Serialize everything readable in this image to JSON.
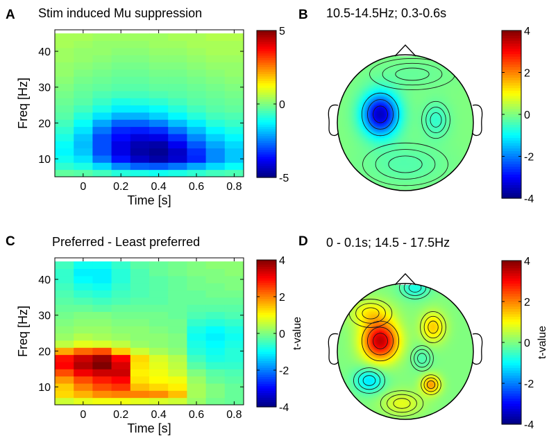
{
  "colormap": "jet",
  "panels": [
    {
      "letter": "A",
      "title": "Stim induced Mu suppression"
    },
    {
      "letter": "B",
      "title": "10.5-14.5Hz; 0.3-0.6s"
    },
    {
      "letter": "C",
      "title": "Preferred - Least preferred"
    },
    {
      "letter": "D",
      "title": "0 - 0.1s; 14.5 - 17.5Hz"
    }
  ],
  "chart_data": [
    {
      "panel": "A",
      "type": "heatmap",
      "title": "Stim induced Mu suppression",
      "xlabel": "Time [s]",
      "ylabel": "Freq [Hz]",
      "xlim": [
        -0.15,
        0.85
      ],
      "ylim": [
        5,
        46
      ],
      "xticks": [
        "0",
        "0.2",
        "0.4",
        "0.6",
        "0.8"
      ],
      "xtick_values": [
        0,
        0.2,
        0.4,
        0.6,
        0.8
      ],
      "yticks": [
        "10",
        "20",
        "30",
        "40"
      ],
      "ytick_values": [
        10,
        20,
        30,
        40
      ],
      "x": [
        -0.1,
        0.0,
        0.1,
        0.2,
        0.3,
        0.4,
        0.5,
        0.6,
        0.7,
        0.8
      ],
      "y": [
        6,
        8,
        10,
        12,
        14,
        16,
        18,
        20,
        22,
        24,
        26,
        28,
        30,
        32,
        34,
        36,
        38,
        40,
        42,
        44
      ],
      "values": [
        [
          -0.3,
          -0.4,
          -0.6,
          -0.9,
          -1.0,
          -1.1,
          -1.0,
          -0.8,
          -0.6,
          -0.5
        ],
        [
          -0.8,
          -1.0,
          -1.6,
          -2.4,
          -2.8,
          -2.9,
          -2.6,
          -2.1,
          -1.6,
          -1.2
        ],
        [
          -1.1,
          -1.5,
          -2.6,
          -3.6,
          -4.3,
          -4.6,
          -4.2,
          -3.4,
          -2.4,
          -1.8
        ],
        [
          -1.3,
          -1.8,
          -3.0,
          -4.0,
          -4.6,
          -4.8,
          -4.3,
          -3.3,
          -2.4,
          -1.8
        ],
        [
          -1.2,
          -1.9,
          -3.0,
          -4.0,
          -4.5,
          -4.6,
          -3.9,
          -2.9,
          -2.1,
          -1.6
        ],
        [
          -1.0,
          -1.8,
          -3.0,
          -3.7,
          -4.1,
          -4.0,
          -3.3,
          -2.4,
          -1.7,
          -1.3
        ],
        [
          -0.8,
          -1.5,
          -2.6,
          -3.4,
          -3.5,
          -3.3,
          -2.6,
          -1.9,
          -1.3,
          -1.0
        ],
        [
          -0.6,
          -1.2,
          -2.1,
          -2.8,
          -2.8,
          -2.5,
          -1.9,
          -1.4,
          -0.9,
          -0.7
        ],
        [
          -0.4,
          -0.9,
          -1.5,
          -2.0,
          -2.0,
          -1.7,
          -1.3,
          -0.9,
          -0.6,
          -0.5
        ],
        [
          -0.3,
          -0.6,
          -1.0,
          -1.4,
          -1.4,
          -1.2,
          -0.9,
          -0.6,
          -0.4,
          -0.3
        ],
        [
          -0.2,
          -0.4,
          -0.7,
          -1.0,
          -0.9,
          -0.8,
          -0.6,
          -0.4,
          -0.3,
          -0.2
        ],
        [
          -0.1,
          -0.3,
          -0.5,
          -0.6,
          -0.6,
          -0.5,
          -0.4,
          -0.3,
          -0.2,
          -0.1
        ],
        [
          0.0,
          -0.2,
          -0.3,
          -0.4,
          -0.4,
          -0.3,
          -0.3,
          -0.2,
          -0.1,
          0.0
        ],
        [
          0.1,
          -0.1,
          -0.2,
          -0.3,
          -0.3,
          -0.2,
          -0.2,
          -0.1,
          0.0,
          0.1
        ],
        [
          0.2,
          0.0,
          -0.1,
          -0.2,
          -0.2,
          -0.1,
          -0.1,
          0.0,
          0.1,
          0.2
        ],
        [
          0.2,
          0.1,
          0.0,
          -0.1,
          -0.1,
          0.0,
          0.0,
          0.1,
          0.2,
          0.2
        ],
        [
          0.3,
          0.2,
          0.1,
          0.0,
          0.0,
          0.1,
          0.1,
          0.2,
          0.3,
          0.3
        ],
        [
          0.3,
          0.2,
          0.2,
          0.1,
          0.1,
          0.2,
          0.2,
          0.3,
          0.4,
          0.4
        ],
        [
          0.4,
          0.3,
          0.2,
          0.2,
          0.2,
          0.3,
          0.3,
          0.4,
          0.4,
          0.4
        ],
        [
          0.4,
          0.4,
          0.3,
          0.3,
          0.3,
          0.3,
          0.4,
          0.4,
          0.5,
          0.5
        ]
      ],
      "colorbar": {
        "min": -5,
        "max": 5,
        "ticks": [
          "5",
          "0",
          "-5"
        ],
        "tick_values": [
          5,
          0,
          -5
        ],
        "label": ""
      }
    },
    {
      "panel": "B",
      "type": "heatmap",
      "subtype": "topographic scalp map",
      "title": "10.5-14.5Hz; 0.3-0.6s",
      "extrema": [
        {
          "location": "left-central",
          "value": -3.5
        },
        {
          "location": "right-temporal",
          "value": -0.6
        }
      ],
      "colorbar": {
        "min": -4,
        "max": 4,
        "ticks": [
          "4",
          "2",
          "0",
          "-2",
          "-4"
        ],
        "tick_values": [
          4,
          2,
          0,
          -2,
          -4
        ],
        "label": ""
      }
    },
    {
      "panel": "C",
      "type": "heatmap",
      "title": "Preferred - Least preferred",
      "xlabel": "Time [s]",
      "ylabel": "Freq [Hz]",
      "xlim": [
        -0.15,
        0.85
      ],
      "ylim": [
        5,
        46
      ],
      "xticks": [
        "0",
        "0.2",
        "0.4",
        "0.6",
        "0.8"
      ],
      "xtick_values": [
        0,
        0.2,
        0.4,
        0.6,
        0.8
      ],
      "yticks": [
        "10",
        "20",
        "30",
        "40"
      ],
      "ytick_values": [
        10,
        20,
        30,
        40
      ],
      "x": [
        -0.1,
        0.0,
        0.1,
        0.2,
        0.3,
        0.4,
        0.5,
        0.6,
        0.7,
        0.8
      ],
      "y": [
        6,
        8,
        10,
        12,
        14,
        16,
        18,
        20,
        22,
        24,
        26,
        28,
        30,
        32,
        34,
        36,
        38,
        40,
        42,
        44
      ],
      "values": [
        [
          0.6,
          0.8,
          0.9,
          0.9,
          0.8,
          0.7,
          0.6,
          0.2,
          -0.1,
          -0.2
        ],
        [
          1.3,
          1.6,
          1.9,
          2.0,
          2.0,
          1.9,
          1.5,
          0.3,
          0.0,
          -0.2
        ],
        [
          1.4,
          2.0,
          2.4,
          2.6,
          1.5,
          1.3,
          1.1,
          0.3,
          0.0,
          -0.2
        ],
        [
          1.8,
          2.4,
          2.8,
          3.0,
          1.2,
          1.0,
          0.9,
          0.2,
          -0.2,
          -0.3
        ],
        [
          2.4,
          3.1,
          3.4,
          3.4,
          1.1,
          0.9,
          0.6,
          0.0,
          -0.3,
          -0.4
        ],
        [
          3.0,
          3.6,
          4.0,
          3.3,
          1.2,
          0.8,
          0.5,
          -0.3,
          -0.6,
          -0.6
        ],
        [
          2.9,
          3.4,
          3.8,
          3.0,
          1.3,
          0.7,
          0.4,
          -0.5,
          -0.8,
          -0.7
        ],
        [
          1.7,
          2.2,
          2.4,
          1.4,
          0.6,
          0.3,
          0.1,
          -0.7,
          -0.9,
          -0.7
        ],
        [
          0.5,
          0.8,
          0.7,
          0.5,
          0.2,
          0.1,
          0.0,
          -0.8,
          -1.0,
          -0.8
        ],
        [
          0.2,
          0.4,
          0.3,
          0.2,
          0.1,
          0.1,
          0.0,
          -0.9,
          -1.1,
          -0.9
        ],
        [
          0.1,
          0.2,
          0.2,
          0.1,
          0.1,
          0.0,
          -0.1,
          -0.8,
          -1.0,
          -0.8
        ],
        [
          0.0,
          0.1,
          0.1,
          0.0,
          0.0,
          -0.1,
          -0.1,
          -0.6,
          -0.7,
          -0.6
        ],
        [
          -0.1,
          0.0,
          0.0,
          -0.1,
          -0.1,
          -0.1,
          -0.2,
          -0.4,
          -0.5,
          -0.4
        ],
        [
          -0.2,
          -0.2,
          -0.3,
          -0.2,
          -0.2,
          -0.2,
          -0.2,
          -0.3,
          -0.3,
          -0.3
        ],
        [
          -0.3,
          -0.4,
          -0.5,
          -0.4,
          -0.3,
          -0.3,
          -0.2,
          -0.2,
          -0.2,
          -0.2
        ],
        [
          -0.4,
          -0.6,
          -0.7,
          -0.5,
          -0.4,
          -0.3,
          -0.2,
          -0.2,
          -0.1,
          -0.1
        ],
        [
          -0.5,
          -0.8,
          -0.9,
          -0.6,
          -0.4,
          -0.3,
          -0.2,
          -0.1,
          -0.1,
          0.0
        ],
        [
          -0.6,
          -1.0,
          -1.1,
          -0.7,
          -0.4,
          -0.3,
          -0.2,
          -0.1,
          0.0,
          0.0
        ],
        [
          -0.6,
          -1.1,
          -1.1,
          -0.7,
          -0.4,
          -0.2,
          -0.1,
          0.0,
          0.0,
          0.1
        ],
        [
          -0.5,
          -0.9,
          -0.9,
          -0.6,
          -0.3,
          -0.2,
          -0.1,
          0.0,
          0.1,
          0.1
        ]
      ],
      "colorbar": {
        "min": -4,
        "max": 4,
        "ticks": [
          "4",
          "2",
          "0",
          "-2",
          "-4"
        ],
        "tick_values": [
          4,
          2,
          0,
          -2,
          -4
        ],
        "label": "t-value"
      }
    },
    {
      "panel": "D",
      "type": "heatmap",
      "subtype": "topographic scalp map",
      "title": "0 - 0.1s; 14.5 - 17.5Hz",
      "extrema": [
        {
          "location": "left-central",
          "value": 3.5
        },
        {
          "location": "right-posterior",
          "value": 1.8
        },
        {
          "location": "left-posterior",
          "value": -1.2
        },
        {
          "location": "frontal-midline",
          "value": -0.8
        }
      ],
      "colorbar": {
        "min": -4,
        "max": 4,
        "ticks": [
          "4",
          "2",
          "0",
          "-2",
          "-4"
        ],
        "tick_values": [
          4,
          2,
          0,
          -2,
          -4
        ],
        "label": "t-value"
      }
    }
  ]
}
